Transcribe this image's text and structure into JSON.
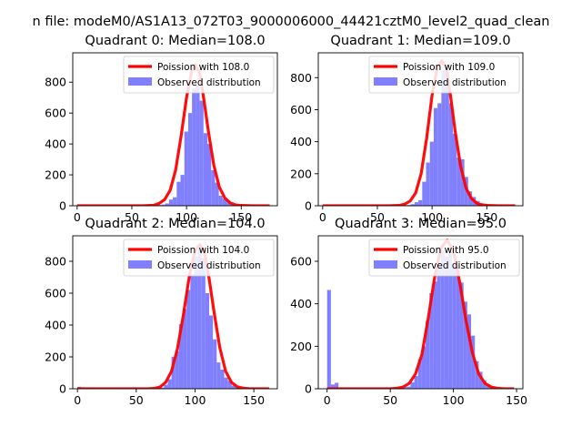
{
  "figure": {
    "suptitle": "n file: modeM0/AS1A13_072T03_9000006000_44421cztM0_level2_quad_clean"
  },
  "colors": {
    "hist": "#8080ff",
    "poisson": "#ff0000",
    "axis": "#000000",
    "legend_border": "#cccccc"
  },
  "chart_data": [
    {
      "type": "bar",
      "title": "Quadrant 0: Median=108.0",
      "median": 108.0,
      "xlim": [
        -4,
        183
      ],
      "ylim": [
        0,
        990
      ],
      "xticks": [
        0,
        50,
        100,
        150
      ],
      "xtick_labels": [
        "0",
        "50",
        "100",
        "150"
      ],
      "yticks": [
        0,
        200,
        400,
        600,
        800
      ],
      "ytick_labels": [
        "0",
        "200",
        "400",
        "600",
        "800"
      ],
      "bin_width": 3.5,
      "legend": {
        "position": "top-right",
        "entries": [
          "Poission with 108.0",
          "Observed distribution"
        ]
      },
      "histogram": {
        "name": "Observed distribution",
        "x": [
          0,
          3.5,
          7,
          10.5,
          14,
          17.5,
          21,
          24.5,
          28,
          31.5,
          35,
          38.5,
          42,
          45.5,
          49,
          52.5,
          56,
          59.5,
          63,
          66.5,
          70,
          73.5,
          77,
          80.5,
          84,
          87.5,
          91,
          94.5,
          98,
          101.5,
          105,
          108.5,
          112,
          115.5,
          119,
          122.5,
          126,
          129.5,
          133,
          136.5,
          140,
          143.5,
          147,
          150.5,
          154,
          157.5,
          161,
          164.5,
          168,
          171.5
        ],
        "values": [
          0,
          2,
          0,
          0,
          0,
          0,
          0,
          0,
          0,
          0,
          0,
          0,
          0,
          0,
          0,
          0,
          0,
          0,
          0,
          0,
          2,
          5,
          8,
          15,
          40,
          55,
          155,
          200,
          480,
          600,
          760,
          780,
          680,
          470,
          400,
          230,
          150,
          65,
          45,
          32,
          12,
          5,
          3,
          1,
          0,
          0,
          0,
          0,
          0,
          0
        ]
      },
      "poisson": {
        "name": "Poission with 108.0",
        "x": [
          0,
          10,
          20,
          30,
          40,
          50,
          60,
          70,
          75,
          80,
          85,
          90,
          95,
          100,
          105,
          108,
          112,
          116,
          120,
          125,
          130,
          135,
          140,
          145,
          150,
          160,
          170,
          176
        ],
        "values": [
          0,
          0,
          0,
          0,
          0,
          0,
          0,
          3,
          15,
          40,
          100,
          230,
          450,
          700,
          880,
          910,
          860,
          680,
          480,
          260,
          120,
          50,
          18,
          5,
          2,
          0,
          0,
          0
        ]
      }
    },
    {
      "type": "bar",
      "title": "Quadrant 1: Median=109.0",
      "median": 109.0,
      "xlim": [
        -4,
        183
      ],
      "ylim": [
        0,
        955
      ],
      "xticks": [
        0,
        50,
        100,
        150
      ],
      "xtick_labels": [
        "0",
        "50",
        "100",
        "150"
      ],
      "yticks": [
        0,
        200,
        400,
        600,
        800
      ],
      "ytick_labels": [
        "0",
        "200",
        "400",
        "600",
        "800"
      ],
      "bin_width": 3.5,
      "legend": {
        "position": "top-right",
        "entries": [
          "Poission with 109.0",
          "Observed distribution"
        ]
      },
      "histogram": {
        "name": "Observed distribution",
        "x": [
          0,
          3.5,
          7,
          10.5,
          14,
          17.5,
          21,
          24.5,
          28,
          31.5,
          35,
          38.5,
          42,
          45.5,
          49,
          52.5,
          56,
          59.5,
          63,
          66.5,
          70,
          73.5,
          77,
          80.5,
          84,
          87.5,
          91,
          94.5,
          98,
          101.5,
          105,
          108.5,
          112,
          115.5,
          119,
          122.5,
          126,
          129.5,
          133,
          136.5,
          140,
          143.5,
          147,
          150.5,
          154,
          157.5,
          161,
          164.5,
          168,
          171.5
        ],
        "values": [
          0,
          0,
          0,
          0,
          0,
          0,
          0,
          0,
          0,
          0,
          0,
          0,
          0,
          0,
          0,
          0,
          0,
          0,
          0,
          0,
          0,
          2,
          5,
          10,
          22,
          35,
          150,
          270,
          400,
          610,
          640,
          850,
          850,
          640,
          450,
          300,
          290,
          180,
          90,
          55,
          30,
          15,
          8,
          3,
          1,
          0,
          0,
          0,
          0,
          0
        ]
      },
      "poisson": {
        "name": "Poission with 109.0",
        "x": [
          0,
          10,
          20,
          30,
          40,
          50,
          60,
          70,
          75,
          80,
          85,
          90,
          95,
          100,
          105,
          109,
          113,
          117,
          121,
          126,
          131,
          136,
          141,
          146,
          151,
          160,
          170,
          176
        ],
        "values": [
          0,
          0,
          0,
          0,
          0,
          0,
          0,
          2,
          10,
          30,
          80,
          200,
          420,
          690,
          870,
          905,
          860,
          680,
          470,
          250,
          110,
          45,
          15,
          5,
          2,
          0,
          0,
          0
        ]
      }
    },
    {
      "type": "bar",
      "title": "Quadrant 2: Median=104.0",
      "median": 104.0,
      "xlim": [
        -4,
        170
      ],
      "ylim": [
        0,
        960
      ],
      "xticks": [
        0,
        50,
        100,
        150
      ],
      "xtick_labels": [
        "0",
        "50",
        "100",
        "150"
      ],
      "yticks": [
        0,
        200,
        400,
        600,
        800
      ],
      "ytick_labels": [
        "0",
        "200",
        "400",
        "600",
        "800"
      ],
      "bin_width": 3.2,
      "legend": {
        "position": "top-right",
        "entries": [
          "Poission with 104.0",
          "Observed distribution"
        ]
      },
      "histogram": {
        "name": "Observed distribution",
        "x": [
          0,
          3.2,
          6.4,
          9.6,
          12.8,
          16,
          19.2,
          22.4,
          25.6,
          28.8,
          32,
          35.2,
          38.4,
          41.6,
          44.8,
          48,
          51.2,
          54.4,
          57.6,
          60.8,
          64,
          67.2,
          70.4,
          73.6,
          76.8,
          80,
          83.2,
          86.4,
          89.6,
          92.8,
          96,
          99.2,
          102.4,
          105.6,
          108.8,
          112,
          115.2,
          118.4,
          121.6,
          124.8,
          128,
          131.2,
          134.4,
          137.6,
          140.8,
          144,
          147.2,
          150.4,
          153.6,
          156.8
        ],
        "values": [
          12,
          8,
          5,
          5,
          4,
          3,
          3,
          2,
          2,
          2,
          1,
          1,
          1,
          1,
          1,
          1,
          1,
          1,
          1,
          2,
          3,
          5,
          8,
          25,
          60,
          200,
          235,
          405,
          500,
          620,
          720,
          830,
          890,
          820,
          600,
          460,
          310,
          165,
          120,
          70,
          50,
          20,
          12,
          5,
          2,
          1,
          0,
          0,
          0,
          0
        ]
      },
      "poisson": {
        "name": "Poission with 104.0",
        "x": [
          0,
          10,
          20,
          30,
          40,
          50,
          60,
          65,
          70,
          75,
          80,
          85,
          90,
          95,
          100,
          104,
          108,
          112,
          116,
          121,
          126,
          131,
          136,
          141,
          146,
          155,
          163
        ],
        "values": [
          0,
          0,
          0,
          0,
          0,
          0,
          0,
          2,
          10,
          40,
          110,
          250,
          460,
          700,
          870,
          905,
          860,
          690,
          490,
          260,
          110,
          40,
          12,
          4,
          1,
          0,
          0
        ]
      }
    },
    {
      "type": "bar",
      "title": "Quadrant 3: Median=95.0",
      "median": 95.0,
      "xlim": [
        -7,
        155
      ],
      "ylim": [
        0,
        720
      ],
      "xticks": [
        0,
        50,
        100,
        150
      ],
      "xtick_labels": [
        "0",
        "50",
        "100",
        "150"
      ],
      "yticks": [
        0,
        200,
        400,
        600
      ],
      "ytick_labels": [
        "0",
        "200",
        "400",
        "600"
      ],
      "bin_width": 3.0,
      "legend": {
        "position": "top-right",
        "entries": [
          "Poission with 95.0",
          "Observed distribution"
        ]
      },
      "histogram": {
        "name": "Observed distribution",
        "x": [
          0,
          3,
          6,
          9,
          12,
          15,
          18,
          21,
          24,
          27,
          30,
          33,
          36,
          39,
          42,
          45,
          48,
          51,
          54,
          57,
          60,
          63,
          66,
          69,
          72,
          75,
          78,
          81,
          84,
          87,
          90,
          93,
          96,
          99,
          102,
          105,
          108,
          111,
          114,
          117,
          120,
          123,
          126,
          129,
          132,
          135,
          138,
          141,
          144
        ],
        "values": [
          465,
          20,
          28,
          5,
          3,
          2,
          2,
          1,
          1,
          1,
          1,
          1,
          1,
          1,
          1,
          1,
          1,
          2,
          3,
          5,
          8,
          10,
          30,
          60,
          140,
          200,
          320,
          450,
          505,
          575,
          650,
          620,
          650,
          580,
          560,
          500,
          410,
          350,
          250,
          130,
          80,
          40,
          20,
          10,
          5,
          2,
          1,
          0,
          0
        ]
      },
      "poisson": {
        "name": "Poission with 95.0",
        "x": [
          0,
          10,
          20,
          30,
          40,
          50,
          55,
          60,
          65,
          70,
          75,
          80,
          85,
          90,
          95,
          100,
          105,
          110,
          115,
          120,
          125,
          130,
          135,
          140,
          148
        ],
        "values": [
          0,
          0,
          0,
          0,
          0,
          0,
          2,
          8,
          25,
          70,
          160,
          330,
          520,
          660,
          700,
          650,
          500,
          320,
          170,
          70,
          25,
          8,
          2,
          0,
          0
        ]
      }
    }
  ]
}
